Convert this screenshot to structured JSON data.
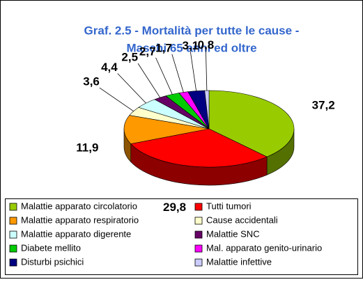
{
  "chart_data": {
    "type": "pie3d",
    "title": "Graf. 2.5 - Mortalità per tutte le cause -",
    "subtitle": "Maschi 65 anni ed oltre",
    "categories": [
      "Malattie apparato circolatorio",
      "Tutti tumori",
      "Malattie apparato respiratorio",
      "Cause accidentali",
      "Malattie apparato digerente",
      "Malattie SNC",
      "Diabete mellito",
      "Mal. apparato genito-urinario",
      "Disturbi psichici",
      "Malattie infettive"
    ],
    "values": [
      37.2,
      29.8,
      11.9,
      3.6,
      4.4,
      2.5,
      2.7,
      1.7,
      3.1,
      0.8
    ],
    "value_labels": [
      "37,2",
      "29,8",
      "11,9",
      "3,6",
      "4,4",
      "2,5",
      "2,7",
      "1,7",
      "3,1",
      "0,8"
    ],
    "colors": [
      "#99cc00",
      "#ff0000",
      "#ff9900",
      "#ffffcc",
      "#ccffff",
      "#660066",
      "#00cc00",
      "#ff00ff",
      "#000080",
      "#ccccff"
    ],
    "legend": "bottom"
  }
}
